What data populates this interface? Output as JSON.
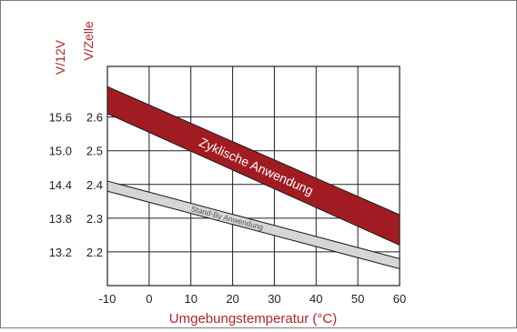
{
  "chart_data": {
    "type": "area",
    "title": "",
    "xlabel": "Umgebungstemperatur (°C)",
    "y_axis_labels": [
      "V/12V",
      "V/Zelle"
    ],
    "x_ticks": [
      "-10",
      "0",
      "10",
      "20",
      "30",
      "40",
      "50",
      "60"
    ],
    "xlim": [
      -10,
      60
    ],
    "ylim_v_zelle": [
      2.1,
      2.75
    ],
    "y_ticks_v12": [
      "15.6",
      "15.0",
      "14.4",
      "13.8",
      "13.2"
    ],
    "y_ticks_vzelle": [
      "2.6",
      "2.5",
      "2.4",
      "2.3",
      "2.2"
    ],
    "y_tick_values_vzelle": [
      2.6,
      2.5,
      2.4,
      2.3,
      2.2
    ],
    "grid": true,
    "series": [
      {
        "name": "Zyklische Anwendung",
        "x": [
          -10,
          60
        ],
        "upper": [
          2.69,
          2.31
        ],
        "lower": [
          2.61,
          2.22
        ],
        "color": "#a11c22"
      },
      {
        "name": "Stand-By Anwendung",
        "x": [
          -10,
          60
        ],
        "upper": [
          2.41,
          2.18
        ],
        "lower": [
          2.38,
          2.15
        ],
        "color": "#d6d6d6"
      }
    ],
    "colors": {
      "label_red": "#b1262b",
      "text": "#222222",
      "grid": "#222222"
    }
  }
}
